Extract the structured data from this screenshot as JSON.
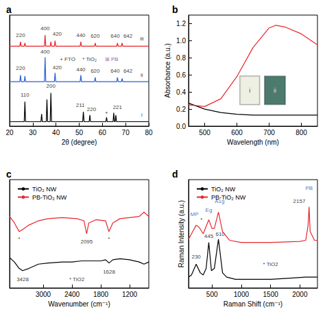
{
  "chart_data": [
    {
      "type": "line",
      "title": "a",
      "xlabel": "2θ (degree)",
      "xlim": [
        20,
        80
      ],
      "xticks": [
        20,
        30,
        40,
        50,
        60,
        70,
        80
      ],
      "ylim": [
        0,
        100
      ],
      "tick_labels": "x",
      "grid": false,
      "series": [
        {
          "color": "#000000",
          "x": [
            20,
            26.3,
            26.6,
            26.9,
            33.5,
            33.8,
            34.1,
            35.8,
            36.1,
            36.4,
            37.5,
            37.8,
            38.1,
            51.5,
            51.8,
            52.1,
            54.3,
            54.6,
            54.9,
            61.5,
            61.8,
            62.1,
            64.6,
            64.9,
            65.2,
            65.5,
            65.8,
            66.1,
            80
          ],
          "values": [
            4,
            4,
            22,
            4,
            4,
            11,
            4,
            4,
            24,
            4,
            4,
            30,
            4,
            4,
            13,
            4,
            4,
            10,
            4,
            4,
            8,
            4,
            4,
            12,
            4,
            4,
            10,
            4,
            4
          ]
        },
        {
          "color": "#2b5fd9",
          "x": [
            20,
            24.4,
            24.7,
            25.0,
            26.3,
            26.6,
            26.9,
            35.0,
            35.3,
            35.6,
            39.3,
            39.6,
            39.9,
            50.4,
            50.7,
            51.0,
            56.6,
            56.9,
            57.2,
            66.2,
            66.5,
            66.8,
            68.2,
            68.5,
            68.8,
            80
          ],
          "values": [
            40,
            40,
            46,
            40,
            40,
            45,
            40,
            40,
            62,
            40,
            40,
            48,
            40,
            40,
            46,
            40,
            40,
            44,
            40,
            40,
            44,
            40,
            40,
            43,
            40,
            40
          ]
        },
        {
          "color": "#e8262a",
          "x": [
            20,
            24.4,
            24.7,
            25.0,
            26.3,
            26.6,
            26.9,
            35.0,
            35.3,
            35.6,
            37.5,
            37.8,
            38.1,
            39.3,
            39.6,
            39.9,
            50.4,
            50.7,
            51.0,
            56.6,
            56.9,
            57.2,
            66.2,
            66.5,
            66.8,
            68.2,
            68.5,
            68.8,
            80
          ],
          "values": [
            72,
            72,
            76,
            72,
            72,
            75,
            72,
            72,
            82,
            72,
            72,
            76,
            72,
            72,
            77,
            72,
            72,
            76,
            72,
            72,
            75,
            72,
            72,
            75,
            72,
            72,
            75,
            72,
            72
          ]
        }
      ],
      "annotations": [
        {
          "text": "110",
          "x": 26.6,
          "y": 28
        },
        {
          "text": "200",
          "x": 37.8,
          "y": 36
        },
        {
          "text": "211",
          "x": 50.5,
          "y": 19
        },
        {
          "text": "220",
          "x": 55.3,
          "y": 15
        },
        {
          "text": "+",
          "x": 61.8,
          "y": 12
        },
        {
          "text": "221",
          "x": 66.5,
          "y": 17
        },
        {
          "text": "220",
          "x": 24.7,
          "y": 52
        },
        {
          "text": "400",
          "x": 35.3,
          "y": 67
        },
        {
          "text": "420",
          "x": 40.5,
          "y": 53
        },
        {
          "text": "440",
          "x": 50.7,
          "y": 51
        },
        {
          "text": "620",
          "x": 56.9,
          "y": 50
        },
        {
          "text": "640",
          "x": 65.5,
          "y": 50
        },
        {
          "text": "642",
          "x": 71,
          "y": 50
        },
        {
          "text": "220",
          "x": 24.7,
          "y": 82
        },
        {
          "text": "400",
          "x": 35.3,
          "y": 88
        },
        {
          "text": "420",
          "x": 40.5,
          "y": 83
        },
        {
          "text": "440",
          "x": 50.7,
          "y": 82
        },
        {
          "text": "620",
          "x": 56.9,
          "y": 81
        },
        {
          "text": "640",
          "x": 65.5,
          "y": 81
        },
        {
          "text": "642",
          "x": 71,
          "y": 81
        },
        {
          "text": "+ FTO",
          "x": 45,
          "y": 60
        },
        {
          "text": "* TiO₂",
          "x": 54.5,
          "y": 60
        },
        {
          "text": "⊞ PB",
          "x": 64,
          "y": 60,
          "color": "#7b2e8e"
        },
        {
          "text": "i",
          "x": 77,
          "y": 10
        },
        {
          "text": "ii",
          "x": 77,
          "y": 46
        },
        {
          "text": "iii",
          "x": 77,
          "y": 79
        }
      ]
    },
    {
      "type": "line",
      "title": "b",
      "xlabel": "Wavelength (nm)",
      "ylabel": "Absorbance (a.u.)",
      "xlim": [
        450,
        850
      ],
      "xticks": [
        500,
        600,
        700,
        800
      ],
      "ylim": [
        0,
        1.3
      ],
      "yticks": [
        {
          "value": 0,
          "label": "0.0"
        },
        0.2,
        0.4,
        0.6,
        0.8,
        {
          "value": 1,
          "label": "1.0"
        },
        1.2
      ],
      "grid": false,
      "series": [
        {
          "color": "#000000",
          "x": [
            450,
            500,
            550,
            600,
            650,
            700,
            750,
            800,
            850
          ],
          "values": [
            0.27,
            0.2,
            0.16,
            0.14,
            0.13,
            0.13,
            0.13,
            0.13,
            0.13
          ]
        },
        {
          "color": "#e8262a",
          "x": [
            450,
            500,
            550,
            600,
            650,
            700,
            720,
            750,
            800,
            850
          ],
          "values": [
            0.25,
            0.23,
            0.32,
            0.58,
            0.92,
            1.15,
            1.18,
            1.16,
            1.08,
            0.95
          ]
        }
      ],
      "inset": [
        {
          "text": "i",
          "x": 640,
          "y": 0.42,
          "color": "#e9ecdc"
        },
        {
          "text": "ii",
          "x": 718,
          "y": 0.42,
          "color": "#1f5a4a"
        }
      ]
    },
    {
      "type": "line",
      "title": "c",
      "xlabel": "Wavenumber (cm⁻¹)",
      "xlim": [
        3700,
        800
      ],
      "xticks": [
        3000,
        2400,
        1800,
        1200
      ],
      "ylim": [
        0,
        100
      ],
      "tick_labels": "x",
      "grid": false,
      "legend": "top-left",
      "series": [
        {
          "name": "TiO₂ NW",
          "color": "#000000",
          "x": [
            3700,
            3600,
            3500,
            3428,
            3300,
            3100,
            2900,
            2600,
            2400,
            2200,
            2000,
            1800,
            1700,
            1628,
            1550,
            1400,
            1200,
            1000,
            900,
            800
          ],
          "values": [
            28,
            24,
            18,
            16,
            18,
            22,
            23,
            24,
            24,
            25,
            25,
            25,
            26,
            23,
            26,
            27,
            26,
            24,
            22,
            24
          ]
        },
        {
          "name": "PB-TiO₂ NW",
          "color": "#e8262a",
          "x": [
            3700,
            3600,
            3500,
            3428,
            3300,
            3100,
            2900,
            2600,
            2300,
            2150,
            2095,
            2050,
            1900,
            1700,
            1630,
            1550,
            1400,
            1200,
            1000,
            900,
            800
          ],
          "values": [
            66,
            60,
            52,
            54,
            58,
            62,
            64,
            65,
            64,
            62,
            50,
            60,
            63,
            62,
            52,
            60,
            64,
            65,
            66,
            70,
            66
          ]
        }
      ],
      "annotations": [
        {
          "text": "*",
          "x": 3500,
          "y": 45
        },
        {
          "text": "3428",
          "x": 3428,
          "y": 8
        },
        {
          "text": "2095",
          "x": 2095,
          "y": 43
        },
        {
          "text": "*",
          "x": 1630,
          "y": 45
        },
        {
          "text": "1628",
          "x": 1628,
          "y": 15
        },
        {
          "text": "* TiO2",
          "x": 2300,
          "y": 8
        }
      ]
    },
    {
      "type": "line",
      "title": "d",
      "xlabel": "Raman Shift (cm⁻¹)",
      "ylabel": "Raman Intensity (a.u.)",
      "xlim": [
        100,
        2300
      ],
      "xticks": [
        500,
        1000,
        1500,
        2000
      ],
      "ylim": [
        0,
        100
      ],
      "tick_labels": "x",
      "grid": false,
      "legend": "top-left",
      "series": [
        {
          "name": "TiO₂ NW",
          "color": "#000000",
          "x": [
            100,
            150,
            230,
            300,
            350,
            400,
            445,
            490,
            540,
            610,
            680,
            750,
            900,
            1200,
            1500,
            1800,
            2100,
            2300
          ],
          "values": [
            10,
            12,
            22,
            14,
            12,
            18,
            42,
            16,
            18,
            45,
            14,
            10,
            8,
            8,
            8,
            9,
            10,
            10
          ]
        },
        {
          "name": "PB-TiO₂ NW",
          "color": "#e8262a",
          "x": [
            100,
            150,
            230,
            280,
            350,
            445,
            500,
            540,
            610,
            680,
            800,
            1000,
            1500,
            2000,
            2100,
            2140,
            2157,
            2175,
            2250,
            2300
          ],
          "values": [
            45,
            50,
            58,
            56,
            50,
            63,
            55,
            55,
            70,
            52,
            44,
            42,
            42,
            43,
            44,
            58,
            75,
            52,
            44,
            44
          ]
        }
      ],
      "annotations": [
        {
          "text": "MP",
          "x": 200,
          "y": 68,
          "color": "#1f4e9f"
        },
        {
          "text": "*",
          "x": 320,
          "y": 63
        },
        {
          "text": "Eg",
          "x": 445,
          "y": 72,
          "color": "#1f4e9f"
        },
        {
          "text": "A1g",
          "x": 630,
          "y": 80,
          "color": "#1f4e9f"
        },
        {
          "text": "PB",
          "x": 2157,
          "y": 92,
          "color": "#1f4e9f"
        },
        {
          "text": "2157",
          "x": 1990,
          "y": 80
        },
        {
          "text": "230",
          "x": 230,
          "y": 29
        },
        {
          "text": "445",
          "x": 445,
          "y": 48
        },
        {
          "text": "610",
          "x": 640,
          "y": 50
        },
        {
          "text": "* TiO2",
          "x": 1500,
          "y": 22
        }
      ]
    }
  ]
}
